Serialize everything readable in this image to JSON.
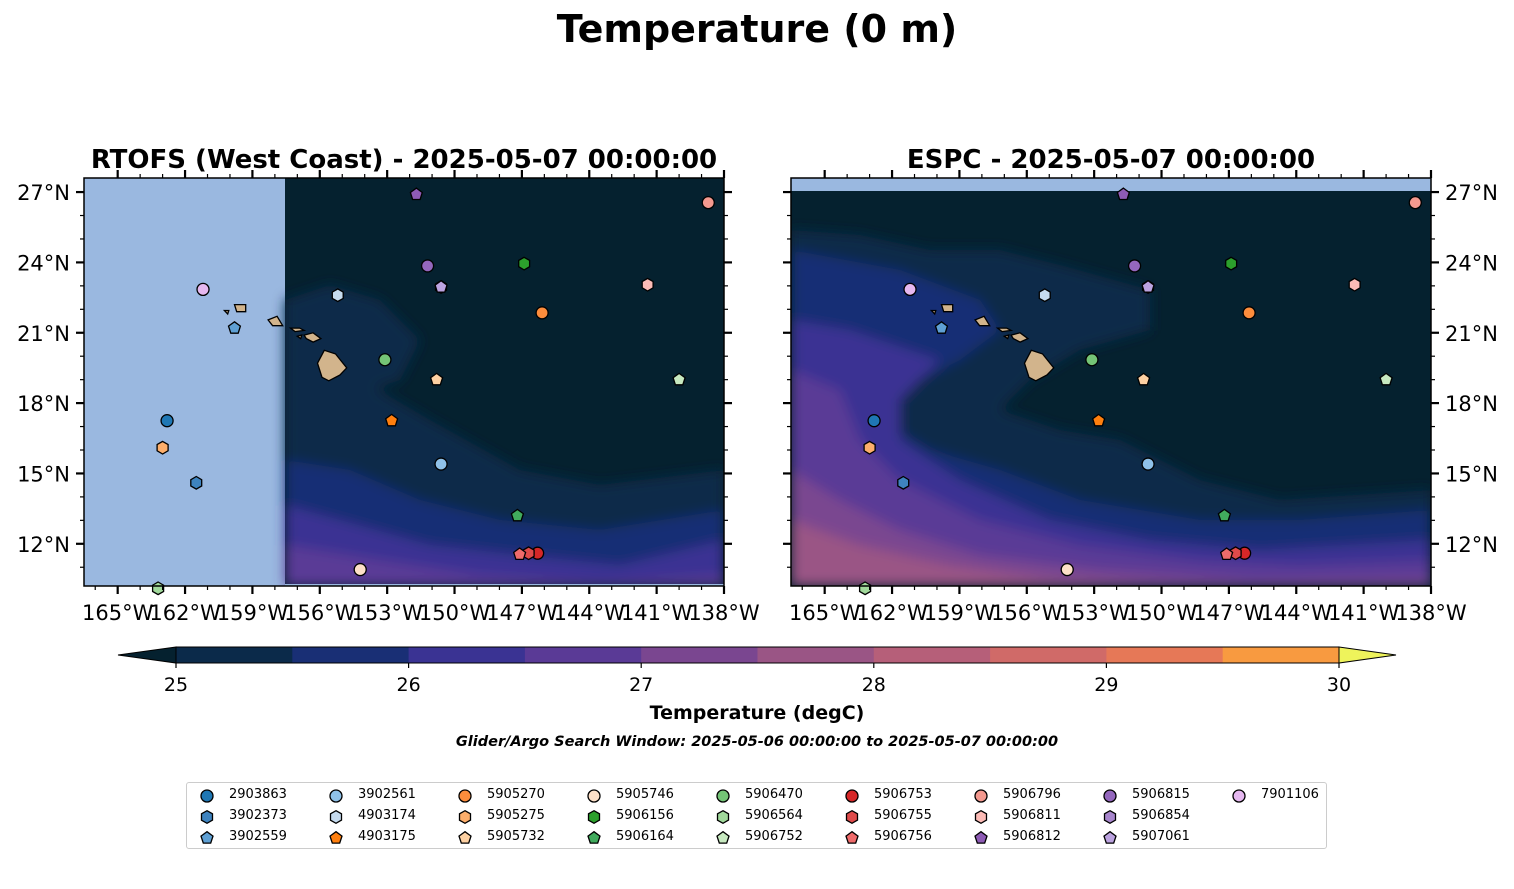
{
  "figure": {
    "title": "Temperature (0 m)",
    "search_window": "Glider/Argo Search Window: 2025-05-06 00:00:00 to 2025-05-07 00:00:00"
  },
  "chart_data": [
    {
      "type": "heatmap",
      "title": "RTOFS (West Coast) - 2025-05-07 00:00:00",
      "x_ticks": [
        "165°W",
        "162°W",
        "159°W",
        "156°W",
        "153°W",
        "150°W",
        "147°W",
        "144°W",
        "141°W",
        "138°W"
      ],
      "y_ticks": [
        "27°N",
        "24°N",
        "21°N",
        "18°N",
        "15°N",
        "12°N"
      ],
      "xlim": [
        -166.5,
        -138
      ],
      "ylim": [
        10.2,
        27.6
      ],
      "model_domain_lon_min": -157.5,
      "grid": false
    },
    {
      "type": "heatmap",
      "title": "ESPC - 2025-05-07 00:00:00",
      "x_ticks": [
        "165°W",
        "162°W",
        "159°W",
        "156°W",
        "153°W",
        "150°W",
        "147°W",
        "144°W",
        "141°W",
        "138°W"
      ],
      "y_ticks": [
        "27°N",
        "24°N",
        "21°N",
        "18°N",
        "15°N",
        "12°N"
      ],
      "xlim": [
        -166.5,
        -138
      ],
      "ylim": [
        10.2,
        27.6
      ],
      "model_domain_lat_max": 27.0,
      "grid": false
    }
  ],
  "colorbar": {
    "label": "Temperature (degC)",
    "ticks": [
      "25",
      "26",
      "27",
      "28",
      "29",
      "30"
    ],
    "range": [
      25,
      30
    ],
    "step": 0.5,
    "extend": "both",
    "colors": [
      "#05212f",
      "#0b2a4a",
      "#192f75",
      "#3a3393",
      "#5a3a96",
      "#7a4690",
      "#9a5585",
      "#b65f79",
      "#d06a68",
      "#e67857",
      "#f89a40",
      "#fec03c",
      "#eef35b"
    ]
  },
  "colors": {
    "land": "#d2b48c",
    "no_data": "#9ab8e0",
    "cold_sea": "#05212f"
  },
  "floats": [
    {
      "id": "2903863",
      "lon": -162.8,
      "lat": 17.25,
      "marker": "circle",
      "color": "#1f77b4"
    },
    {
      "id": "3902373",
      "lon": -161.5,
      "lat": 14.6,
      "marker": "hexagon",
      "color": "#3e83bf"
    },
    {
      "id": "3902559",
      "lon": -159.8,
      "lat": 21.2,
      "marker": "pentagon",
      "color": "#5fa0d4"
    },
    {
      "id": "3902561",
      "lon": -150.6,
      "lat": 15.4,
      "marker": "circle",
      "color": "#8fc1e8"
    },
    {
      "id": "4903174",
      "lon": -155.2,
      "lat": 22.6,
      "marker": "hexagon",
      "color": "#c6dbef"
    },
    {
      "id": "4903175",
      "lon": -152.8,
      "lat": 17.25,
      "marker": "pentagon",
      "color": "#ff7f0e"
    },
    {
      "id": "5905270",
      "lon": -146.1,
      "lat": 21.85,
      "marker": "circle",
      "color": "#fd8d3c"
    },
    {
      "id": "5905275",
      "lon": -163.0,
      "lat": 16.1,
      "marker": "hexagon",
      "color": "#fdae6b"
    },
    {
      "id": "5905732",
      "lon": -150.8,
      "lat": 19.0,
      "marker": "pentagon",
      "color": "#fdd0a2"
    },
    {
      "id": "5905746",
      "lon": -154.2,
      "lat": 10.9,
      "marker": "circle",
      "color": "#fde0c8"
    },
    {
      "id": "5906156",
      "lon": -146.9,
      "lat": 23.95,
      "marker": "hexagon",
      "color": "#2ca02c"
    },
    {
      "id": "5906164",
      "lon": -147.2,
      "lat": 13.2,
      "marker": "pentagon",
      "color": "#41ab5d"
    },
    {
      "id": "5906470",
      "lon": -153.1,
      "lat": 19.85,
      "marker": "circle",
      "color": "#74c476"
    },
    {
      "id": "5906564",
      "lon": -163.2,
      "lat": 10.1,
      "marker": "hexagon",
      "color": "#a1d99b"
    },
    {
      "id": "5906752",
      "lon": -140.0,
      "lat": 19.0,
      "marker": "pentagon",
      "color": "#c7e9c0"
    },
    {
      "id": "5906753",
      "lon": -146.3,
      "lat": 11.6,
      "marker": "circle",
      "color": "#d62728"
    },
    {
      "id": "5906755",
      "lon": -146.7,
      "lat": 11.6,
      "marker": "hexagon",
      "color": "#de4a4a"
    },
    {
      "id": "5906756",
      "lon": -147.1,
      "lat": 11.55,
      "marker": "pentagon",
      "color": "#ef6b6b"
    },
    {
      "id": "5906796",
      "lon": -138.7,
      "lat": 26.55,
      "marker": "circle",
      "color": "#f4998f"
    },
    {
      "id": "5906811",
      "lon": -141.4,
      "lat": 23.05,
      "marker": "hexagon",
      "color": "#fcbbb6"
    },
    {
      "id": "5906812",
      "lon": -151.7,
      "lat": 26.9,
      "marker": "pentagon",
      "color": "#8e5bb5"
    },
    {
      "id": "5906815",
      "lon": -151.2,
      "lat": 23.85,
      "marker": "circle",
      "color": "#9467bd"
    },
    {
      "id": "5906854",
      "lon": -150.6,
      "lat": 22.95,
      "marker": "hexagon",
      "color": "#a785cc"
    },
    {
      "id": "5907061",
      "lon": -150.6,
      "lat": 22.95,
      "marker": "pentagon",
      "color": "#bca3e0"
    },
    {
      "id": "7901106",
      "lon": -161.2,
      "lat": 22.85,
      "marker": "circle",
      "color": "#e6b8f0"
    }
  ]
}
